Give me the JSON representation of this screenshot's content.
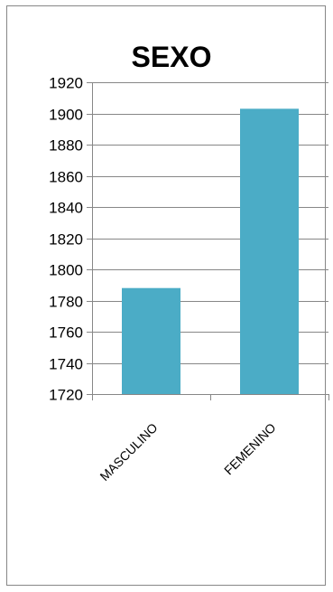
{
  "chart_data": {
    "type": "bar",
    "title": "SEXO",
    "categories": [
      "MASCULINO",
      "FEMENINO"
    ],
    "values": [
      1788,
      1903
    ],
    "ylim": [
      1720,
      1920
    ],
    "yticks": [
      1720,
      1740,
      1760,
      1780,
      1800,
      1820,
      1840,
      1860,
      1880,
      1900,
      1920
    ],
    "grid": true,
    "legend": "none",
    "colors": {
      "bar": "#4BACC6",
      "grid": "#878787",
      "axis": "#878787"
    }
  }
}
